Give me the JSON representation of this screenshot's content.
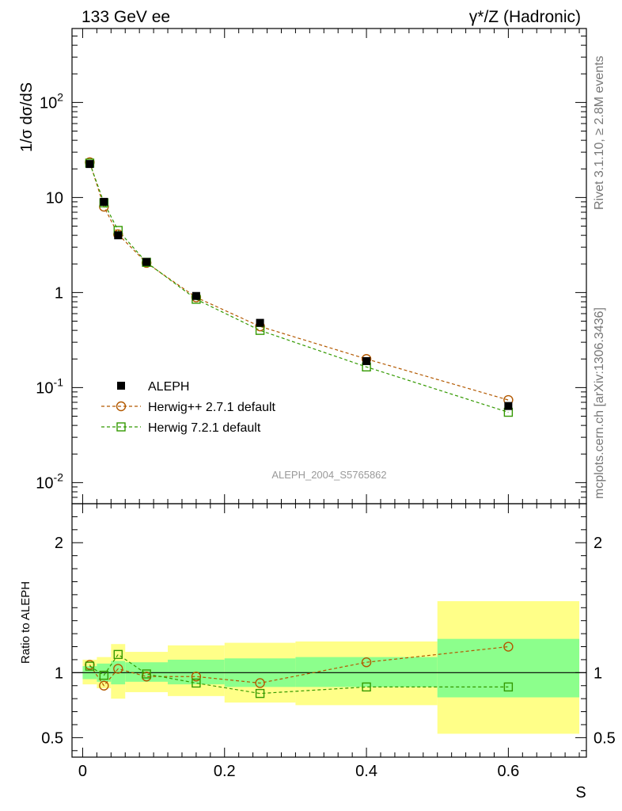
{
  "header": {
    "left": "133 GeV ee",
    "right": "γ*/Z (Hadronic)"
  },
  "side": {
    "rivet": "Rivet 3.1.10, ≥ 2.8M events",
    "mcplots": "mcplots.cern.ch [arXiv:1306.3436]"
  },
  "watermark": "ALEPH_2004_S5765862",
  "chart_data": [
    {
      "type": "scatter",
      "panel": "main",
      "ylabel": "1/σ  dσ/dS",
      "yscale": "log",
      "ylim": [
        0.006,
        600
      ],
      "xlim": [
        -0.015,
        0.71
      ],
      "y_tick_labels": [
        "10^-2",
        "10^-1",
        "1",
        "10",
        "10^2"
      ],
      "x": [
        0.01,
        0.03,
        0.05,
        0.09,
        0.16,
        0.25,
        0.4,
        0.6
      ],
      "series": [
        {
          "name": "ALEPH",
          "marker": "square-filled",
          "color": "#000000",
          "values": [
            22.5,
            9.0,
            4.0,
            2.1,
            0.92,
            0.48,
            0.19,
            0.064
          ]
        },
        {
          "name": "Herwig++ 2.7.1 default",
          "marker": "circle-open",
          "color": "#b35900",
          "values": [
            23.5,
            8.0,
            4.1,
            2.05,
            0.89,
            0.44,
            0.2,
            0.074
          ]
        },
        {
          "name": "Herwig 7.2.1 default",
          "marker": "square-open",
          "color": "#339900",
          "values": [
            23.0,
            8.8,
            4.5,
            2.08,
            0.85,
            0.4,
            0.165,
            0.055
          ]
        }
      ],
      "legend_position": "bottom-left"
    },
    {
      "type": "line",
      "panel": "ratio",
      "ylabel": "Ratio to ALEPH",
      "xlabel": "S",
      "ylim": [
        0.35,
        2.3
      ],
      "y_tick_labels": [
        "0.5",
        "1",
        "2"
      ],
      "x_tick_labels": [
        "0",
        "0.2",
        "0.4",
        "0.6"
      ],
      "x": [
        0.01,
        0.03,
        0.05,
        0.09,
        0.16,
        0.25,
        0.4,
        0.6
      ],
      "bins": [
        [
          0.0,
          0.02
        ],
        [
          0.02,
          0.04
        ],
        [
          0.04,
          0.06
        ],
        [
          0.06,
          0.12
        ],
        [
          0.12,
          0.2
        ],
        [
          0.2,
          0.3
        ],
        [
          0.3,
          0.5
        ],
        [
          0.5,
          0.7
        ]
      ],
      "band_inner": [
        [
          0.95,
          1.05
        ],
        [
          0.93,
          1.07
        ],
        [
          0.91,
          1.09
        ],
        [
          0.93,
          1.08
        ],
        [
          0.91,
          1.1
        ],
        [
          0.89,
          1.11
        ],
        [
          0.89,
          1.12
        ],
        [
          0.81,
          1.26
        ]
      ],
      "band_outer": [
        [
          0.91,
          1.1
        ],
        [
          0.88,
          1.12
        ],
        [
          0.8,
          1.22
        ],
        [
          0.85,
          1.16
        ],
        [
          0.82,
          1.21
        ],
        [
          0.77,
          1.23
        ],
        [
          0.75,
          1.24
        ],
        [
          0.53,
          1.55
        ]
      ],
      "series": [
        {
          "name": "Herwig++ 2.7.1 default",
          "color": "#b35900",
          "marker": "circle-open",
          "values": [
            1.06,
            0.9,
            1.03,
            0.97,
            0.97,
            0.92,
            1.08,
            1.2
          ]
        },
        {
          "name": "Herwig 7.2.1 default",
          "color": "#339900",
          "marker": "square-open",
          "values": [
            1.05,
            0.98,
            1.14,
            0.99,
            0.92,
            0.84,
            0.89,
            0.89
          ]
        }
      ]
    }
  ]
}
